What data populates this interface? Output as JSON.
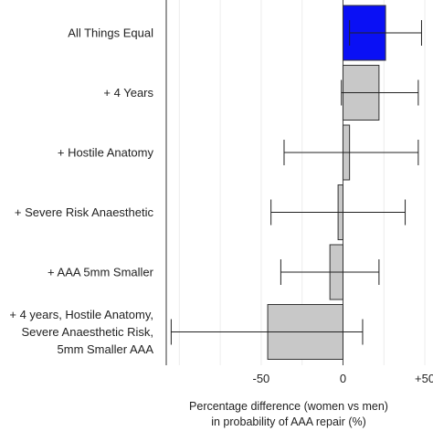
{
  "chart_data": {
    "type": "bar",
    "orientation": "horizontal",
    "title": "",
    "categories": [
      [
        "All Things Equal"
      ],
      [
        "+ 4 Years"
      ],
      [
        "+ Hostile Anatomy"
      ],
      [
        "+ Severe Risk Anaesthetic"
      ],
      [
        "+ AAA 5mm Smaller"
      ],
      [
        "+ 4 years, Hostile Anatomy,",
        "Severe Anaesthetic Risk,",
        "5mm Smaller AAA"
      ]
    ],
    "values": [
      26,
      22,
      4,
      -3,
      -8,
      -46
    ],
    "ci_lower": [
      4,
      -1,
      -36,
      -44,
      -38,
      -105
    ],
    "ci_upper": [
      48,
      46,
      46,
      38,
      22,
      12
    ],
    "colors": [
      "#0a10f5",
      "#c8c8c8",
      "#c8c8c8",
      "#c8c8c8",
      "#c8c8c8",
      "#c8c8c8"
    ],
    "xlim": [
      -108,
      55
    ],
    "xticks": [
      -50,
      0,
      50
    ],
    "xtick_labels": [
      "-50",
      "0",
      "+50"
    ],
    "xlabel": [
      "Percentage difference (women vs men)",
      "in probability of AAA repair (%)"
    ],
    "ylabel": "",
    "grid": "x"
  }
}
